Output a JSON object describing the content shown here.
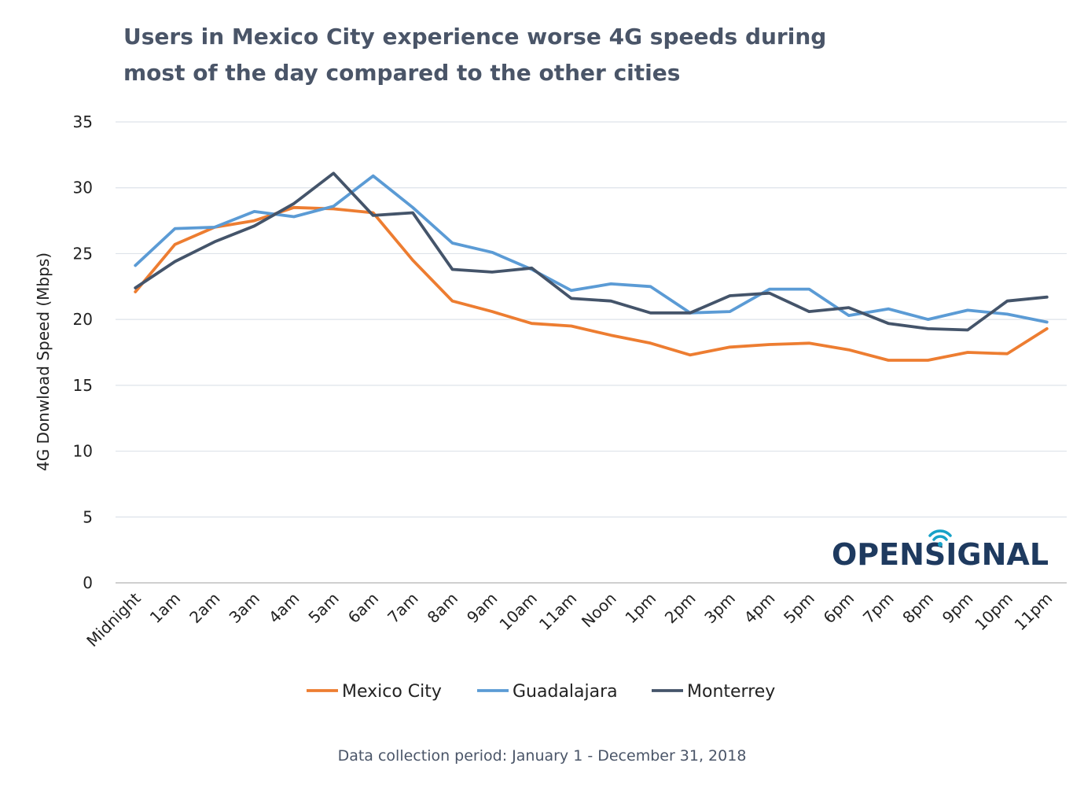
{
  "title_lines": [
    "Users in Mexico City experience worse 4G speeds during",
    "most of the day compared to the other cities"
  ],
  "footnote": "Data collection period: January 1 - December 31, 2018",
  "brand": {
    "text": "OPENSIGNAL"
  },
  "chart_data": {
    "type": "line",
    "categories": [
      "Midnight",
      "1am",
      "2am",
      "3am",
      "4am",
      "5am",
      "6am",
      "7am",
      "8am",
      "9am",
      "10am",
      "11am",
      "Noon",
      "1pm",
      "2pm",
      "3pm",
      "4pm",
      "5pm",
      "6pm",
      "7pm",
      "8pm",
      "9pm",
      "10pm",
      "11pm"
    ],
    "ylabel": "4G Donwload Speed (Mbps)",
    "xlabel": "",
    "ylim": [
      0,
      35
    ],
    "yticks": [
      0,
      5,
      10,
      15,
      20,
      25,
      30,
      35
    ],
    "grid": true,
    "legend_position": "bottom",
    "series": [
      {
        "name": "Mexico City",
        "color": "#ed7d31",
        "values": [
          22.1,
          25.7,
          27.0,
          27.5,
          28.5,
          28.4,
          28.1,
          24.5,
          21.4,
          20.6,
          19.7,
          19.5,
          18.8,
          18.2,
          17.3,
          17.9,
          18.1,
          18.2,
          17.7,
          16.9,
          16.9,
          17.5,
          17.4,
          19.3
        ]
      },
      {
        "name": "Guadalajara",
        "color": "#5b9bd5",
        "values": [
          24.1,
          26.9,
          27.0,
          28.2,
          27.8,
          28.6,
          30.9,
          28.5,
          25.8,
          25.1,
          23.8,
          22.2,
          22.7,
          22.5,
          20.5,
          20.6,
          22.3,
          22.3,
          20.3,
          20.8,
          20.0,
          20.7,
          20.4,
          19.8
        ]
      },
      {
        "name": "Monterrey",
        "color": "#44546a",
        "values": [
          22.4,
          24.4,
          25.9,
          27.1,
          28.8,
          31.1,
          27.9,
          28.1,
          23.8,
          23.6,
          23.9,
          21.6,
          21.4,
          20.5,
          20.5,
          21.8,
          22.0,
          20.6,
          20.9,
          19.7,
          19.3,
          19.2,
          21.4,
          21.7
        ]
      }
    ]
  }
}
